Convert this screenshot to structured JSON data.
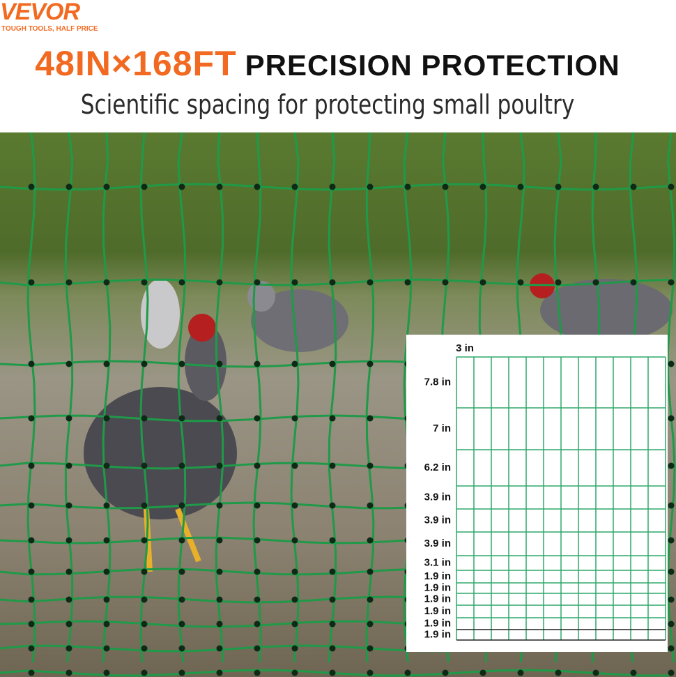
{
  "brand": {
    "name": "VEVOR",
    "tagline": "TOUGH TOOLS, HALF PRICE"
  },
  "header": {
    "size": "48IN×168FT",
    "title": "PRECISION PROTECTION",
    "subtitle": "Scientific spacing for protecting small poultry"
  },
  "diagram": {
    "column_spacing": "3 in",
    "row_spacings": [
      "7.8 in",
      "7 in",
      "6.2 in",
      "3.9 in",
      "3.9 in",
      "3.9 in",
      "3.1 in",
      "1.9 in",
      "1.9 in",
      "1.9 in",
      "1.9 in",
      "1.9 in",
      "1.9 in"
    ]
  }
}
